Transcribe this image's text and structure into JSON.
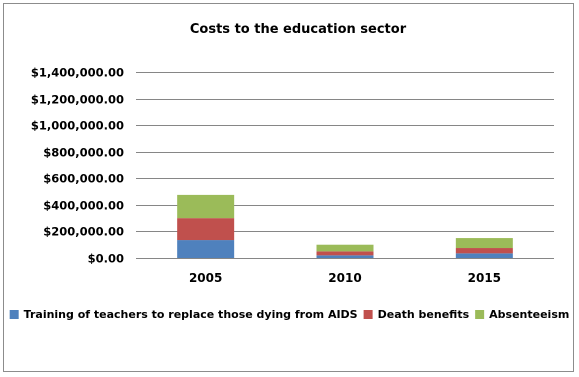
{
  "chart_data": {
    "type": "bar",
    "stacked": true,
    "title": "Costs to the education sector",
    "categories": [
      "2005",
      "2010",
      "2015"
    ],
    "series": [
      {
        "name": "Training of teachers to replace those dying from AIDS",
        "color": "#4f81bd",
        "values": [
          135000,
          20000,
          35000
        ]
      },
      {
        "name": "Death benefits",
        "color": "#c0504d",
        "values": [
          165000,
          30000,
          40000
        ]
      },
      {
        "name": "Absenteeism",
        "color": "#9bbb59",
        "values": [
          175000,
          50000,
          75000
        ]
      }
    ],
    "ylim": [
      0,
      1400000
    ],
    "yticks": [
      0,
      200000,
      400000,
      600000,
      800000,
      1000000,
      1200000,
      1400000
    ],
    "ytick_labels": [
      "$0.00",
      "$200,000.00",
      "$400,000.00",
      "$600,000.00",
      "$800,000.00",
      "$1,000,000.00",
      "$1,200,000.00",
      "$1,400,000.00"
    ],
    "grid": true,
    "legend_position": "bottom"
  }
}
